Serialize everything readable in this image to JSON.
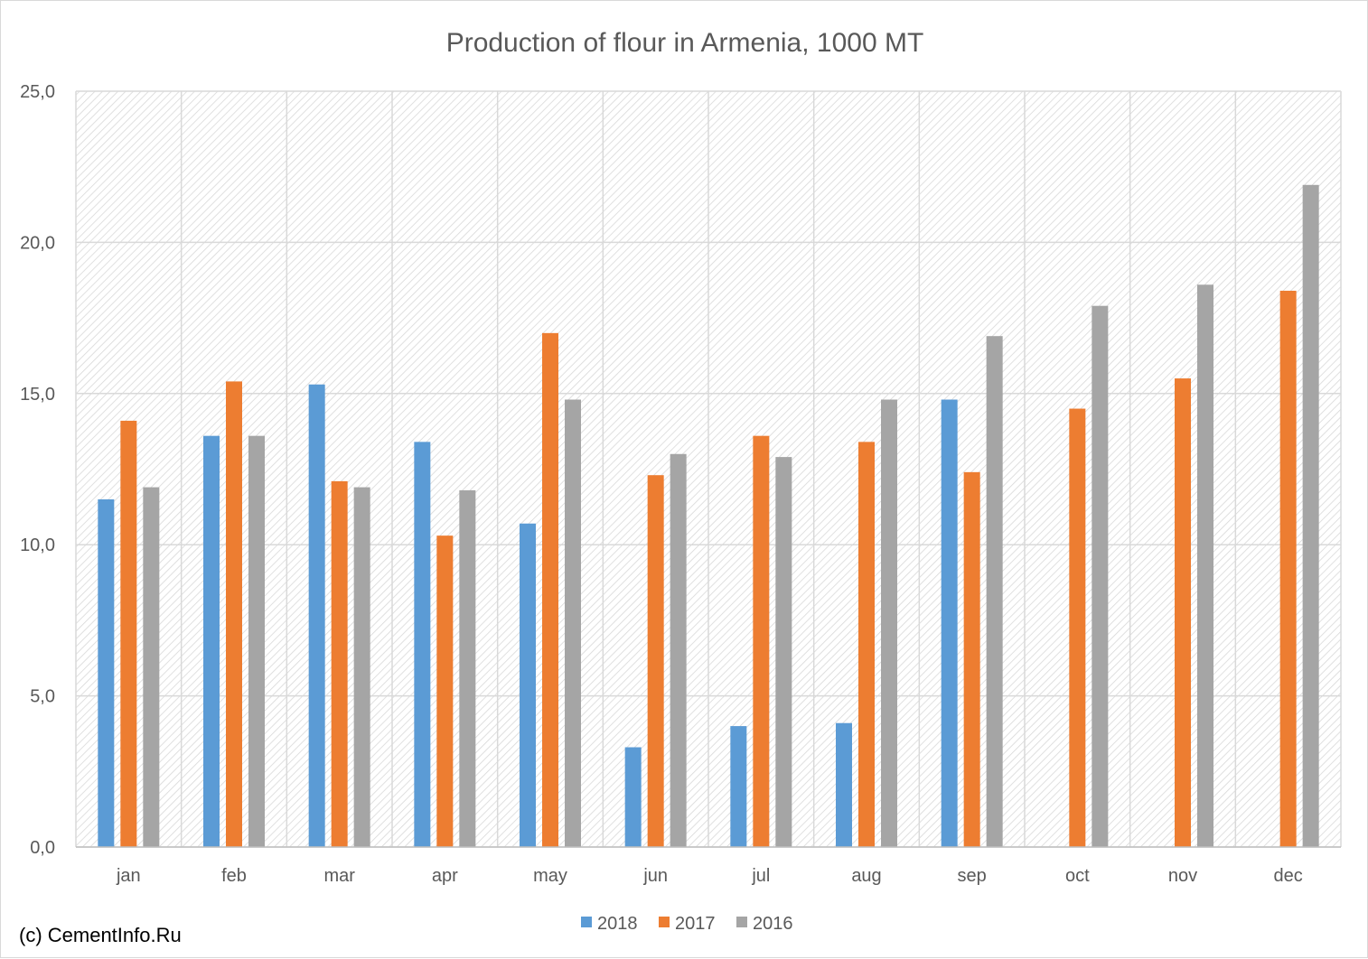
{
  "chart_data": {
    "type": "bar",
    "title": "Production of flour in Armenia, 1000 MT",
    "categories": [
      "jan",
      "feb",
      "mar",
      "apr",
      "may",
      "jun",
      "jul",
      "aug",
      "sep",
      "oct",
      "nov",
      "dec"
    ],
    "series": [
      {
        "name": "2018",
        "color": "#5b9bd5",
        "values": [
          11.5,
          13.6,
          15.3,
          13.4,
          10.7,
          3.3,
          4.0,
          4.1,
          14.8,
          null,
          null,
          null
        ]
      },
      {
        "name": "2017",
        "color": "#ed7d31",
        "values": [
          14.1,
          15.4,
          12.1,
          10.3,
          17.0,
          12.3,
          13.6,
          13.4,
          12.4,
          14.5,
          15.5,
          18.4
        ]
      },
      {
        "name": "2016",
        "color": "#a5a5a5",
        "values": [
          11.9,
          13.6,
          11.9,
          11.8,
          14.8,
          13.0,
          12.9,
          14.8,
          16.9,
          17.9,
          18.6,
          21.9
        ]
      }
    ],
    "ylim": [
      0,
      25
    ],
    "yticks": [
      "0,0",
      "5,0",
      "10,0",
      "15,0",
      "20,0",
      "25,0"
    ],
    "ytick_values": [
      0,
      5,
      10,
      15,
      20,
      25
    ],
    "grid": true,
    "legend_position": "bottom"
  },
  "credit": "(c) CementInfo.Ru"
}
